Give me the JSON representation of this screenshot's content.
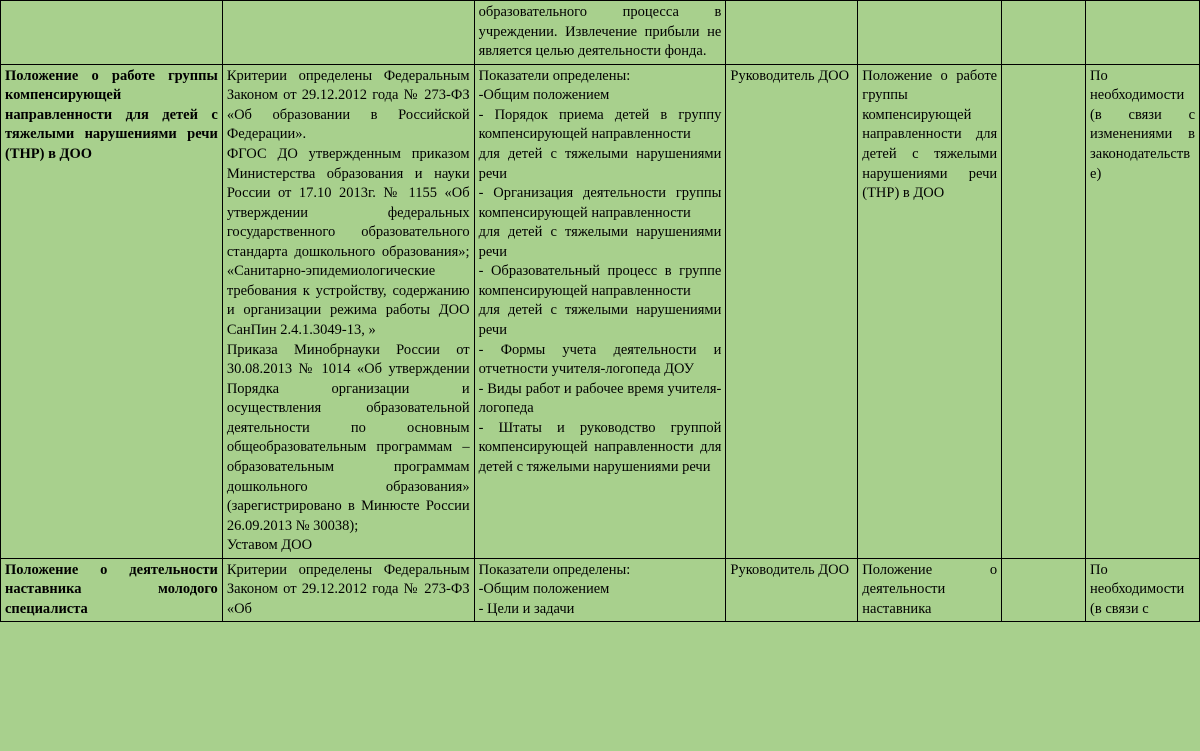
{
  "background_color": "#a8d08d",
  "border_color": "#000000",
  "font_family": "Times New Roman",
  "base_font_size": 14.5,
  "columns": [
    {
      "key": "col1",
      "width_pct": 18.5,
      "bold": true,
      "align": "justify"
    },
    {
      "key": "col2",
      "width_pct": 21,
      "bold": false,
      "align": "justify"
    },
    {
      "key": "col3",
      "width_pct": 21,
      "bold": false,
      "align": "justify"
    },
    {
      "key": "col4",
      "width_pct": 11,
      "bold": false,
      "align": "justify"
    },
    {
      "key": "col5",
      "width_pct": 12,
      "bold": false,
      "align": "justify"
    },
    {
      "key": "col6",
      "width_pct": 7,
      "bold": false,
      "align": "justify"
    },
    {
      "key": "col7",
      "width_pct": 9.5,
      "bold": false,
      "align": "justify"
    }
  ],
  "rows": [
    {
      "c1": "",
      "c2": "",
      "c3": "образовательного процесса в учреждении. Извлечение прибыли не является целью деятельности фонда.",
      "c4": "",
      "c5": "",
      "c6": "",
      "c7": ""
    },
    {
      "c1": "Положение о работе группы компенсирующей направленности для детей с тяжелыми нарушениями речи (ТНР) в ДОО",
      "c2": "Критерии определены Федеральным Законом от 29.12.2012 года № 273-ФЗ «Об образовании в Российской Федерации».\nФГОС ДО утвержденным приказом Министерства образования и науки России от 17.10 2013г. № 1155 «Об утверждении федеральных государственного образовательного стандарта дошкольного образования»; «Санитарно-эпидемиологические требования к устройству, содержанию и организации режима работы ДОО СанПин 2.4.1.3049-13, »\nПриказа Минобрнауки России от 30.08.2013 № 1014 «Об утверждении Порядка организации и осуществления образовательной деятельности по основным общеобразовательным программам – образовательным программам дошкольного образования» (зарегистрировано в Минюсте России 26.09.2013 № 30038);\n Уставом ДОО",
      "c3": "Показатели определены:\n-Общим положением\n- Порядок приема детей в группу компенсирующей направленности\nдля детей с тяжелыми нарушениями речи\n- Организация деятельности группы компенсирующей направленности\nдля детей с тяжелыми нарушениями речи\n- Образовательный процесс в группе компенсирующей направленности\nдля детей с тяжелыми нарушениями речи\n- Формы учета деятельности и отчетности учителя-логопеда ДОУ\n- Виды работ и рабочее время учителя-логопеда\n- Штаты и руководство группой компенсирующей направленности для детей с тяжелыми нарушениями речи",
      "c4": "Руководитель ДОО",
      "c5": "Положение о работе группы компенсирующей направленности для детей с тяжелыми нарушениями речи (ТНР) в ДОО",
      "c6": "",
      "c7": "По необходимости (в связи с изменениями в законодательстве)"
    },
    {
      "c1": "Положение о деятельности наставника молодого специалиста",
      "c2": "Критерии определены Федеральным Законом от 29.12.2012 года № 273-ФЗ «Об",
      "c3": "Показатели определены:\n-Общим положением\n- Цели и задачи",
      "c4": "Руководитель ДОО",
      "c5": "Положение о деятельности наставника",
      "c6": "",
      "c7": "По необходимости (в связи с"
    }
  ]
}
